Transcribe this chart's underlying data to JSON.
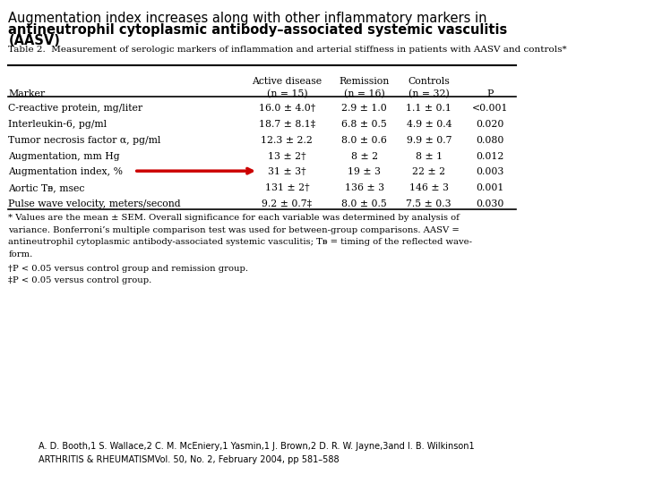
{
  "title_line1": "Augmentation index increases along with other inflammatory markers in",
  "title_line2_bold": "antineutrophil cytoplasmic antibody–associated systemic vasculitis",
  "title_line3_bold": "(AASV)",
  "table_title": "Table 2.  Measurement of serologic markers of inflammation and arterial stiffness in patients with AASV and controls*",
  "col_headers": [
    "",
    "Active disease\n(n = 15)",
    "Remission\n(n = 16)",
    "Controls\n(n = 32)",
    "P"
  ],
  "col_header_row1": [
    "",
    "Active disease",
    "Remission",
    "Controls",
    ""
  ],
  "col_header_row2": [
    "Marker",
    "(n = 15)",
    "(n = 16)",
    "(n = 32)",
    "P"
  ],
  "rows": [
    [
      "C-reactive protein, mg/liter",
      "16.0 ± 4.0†",
      "2.9 ± 1.0",
      "1.1 ± 0.1",
      "<0.001"
    ],
    [
      "Interleukin-6, pg/ml",
      "18.7 ± 8.1‡",
      "6.8 ± 0.5",
      "4.9 ± 0.4",
      "0.020"
    ],
    [
      "Tumor necrosis factor α, pg/ml",
      "12.3 ± 2.2",
      "8.0 ± 0.6",
      "9.9 ± 0.7",
      "0.080"
    ],
    [
      "Augmentation, mm Hg",
      "13 ± 2†",
      "8 ± 2",
      "8 ± 1",
      "0.012"
    ],
    [
      "Augmentation index, %",
      "31 ± 3†",
      "19 ± 3",
      "22 ± 2",
      "0.003"
    ],
    [
      "Aortic Tᴃ, msec",
      "131 ± 2†",
      "136 ± 3",
      "146 ± 3",
      "0.001"
    ],
    [
      "Pulse wave velocity, meters/second",
      "9.2 ± 0.7‡",
      "8.0 ± 0.5",
      "7.5 ± 0.3",
      "0.030"
    ]
  ],
  "arrow_row": 4,
  "footnote1": "* Values are the mean ± SEM. Overall significance for each variable was determined by analysis of",
  "footnote2": "variance. Bonferroni’s multiple comparison test was used for between-group comparisons. AASV =",
  "footnote3": "antineutrophil cytoplasmic antibody-associated systemic vasculitis; Tᴃ = timing of the reflected wave-",
  "footnote4": "form.",
  "footnote5": "†P < 0.05 versus control group and remission group.",
  "footnote6": "‡P < 0.05 versus control group.",
  "citation1": "A. D. Booth,1 S. Wallace,2 C. M. McEniery,1 Yasmin,1 J. Brown,2 D. R. W. Jayne,3and I. B. Wilkinson1",
  "citation2": "ARTHRITIS & RHEUMATISMVol. 50, No. 2, February 2004, pp 581–588",
  "bg_color": "#ffffff",
  "arrow_color": "#cc0000",
  "text_color": "#000000"
}
